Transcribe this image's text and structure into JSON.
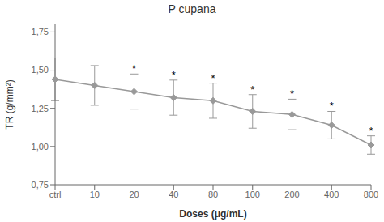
{
  "chart_data": {
    "type": "line",
    "title": "P cupana",
    "x_label": "Doses (μg/mL)",
    "y_label": "TR (g/mm²)",
    "categories": [
      "ctrl",
      "10",
      "20",
      "40",
      "80",
      "100",
      "200",
      "400",
      "800"
    ],
    "values": [
      1.44,
      1.4,
      1.36,
      1.32,
      1.3,
      1.23,
      1.21,
      1.14,
      1.01
    ],
    "errors": [
      0.14,
      0.13,
      0.115,
      0.115,
      0.115,
      0.11,
      0.1,
      0.09,
      0.06
    ],
    "annotations": [
      null,
      null,
      "*",
      "*",
      "*",
      "*",
      "*",
      "*",
      "*"
    ],
    "ylim": [
      0.75,
      1.8
    ],
    "yticks": [
      {
        "value": 0.75,
        "label": "0,75"
      },
      {
        "value": 1.0,
        "label": "1,00"
      },
      {
        "value": 1.25,
        "label": "1,25"
      },
      {
        "value": 1.5,
        "label": "1,50"
      },
      {
        "value": 1.75,
        "label": "1,75"
      }
    ],
    "color": "#999999",
    "marker": "diamond",
    "grid": false
  }
}
